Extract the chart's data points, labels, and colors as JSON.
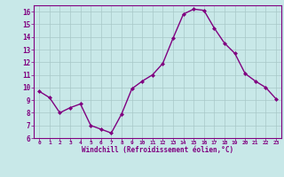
{
  "x": [
    0,
    1,
    2,
    3,
    4,
    5,
    6,
    7,
    8,
    9,
    10,
    11,
    12,
    13,
    14,
    15,
    16,
    17,
    18,
    19,
    20,
    21,
    22,
    23
  ],
  "y": [
    9.7,
    9.2,
    8.0,
    8.4,
    8.7,
    7.0,
    6.7,
    6.4,
    7.9,
    9.9,
    10.5,
    11.0,
    11.9,
    13.9,
    15.8,
    16.2,
    16.1,
    14.7,
    13.5,
    12.7,
    11.1,
    10.5,
    10.0,
    9.1
  ],
  "line_color": "#800080",
  "marker": "D",
  "marker_size": 2,
  "bg_color": "#c8e8e8",
  "grid_color": "#b0d0d0",
  "xlabel": "Windchill (Refroidissement éolien,°C)",
  "xlabel_color": "#800080",
  "tick_color": "#800080",
  "spine_color": "#800080",
  "ylim": [
    6,
    16.5
  ],
  "xlim": [
    -0.5,
    23.5
  ],
  "yticks": [
    6,
    7,
    8,
    9,
    10,
    11,
    12,
    13,
    14,
    15,
    16
  ],
  "xticks": [
    0,
    1,
    2,
    3,
    4,
    5,
    6,
    7,
    8,
    9,
    10,
    11,
    12,
    13,
    14,
    15,
    16,
    17,
    18,
    19,
    20,
    21,
    22,
    23
  ],
  "line_width": 1.0
}
